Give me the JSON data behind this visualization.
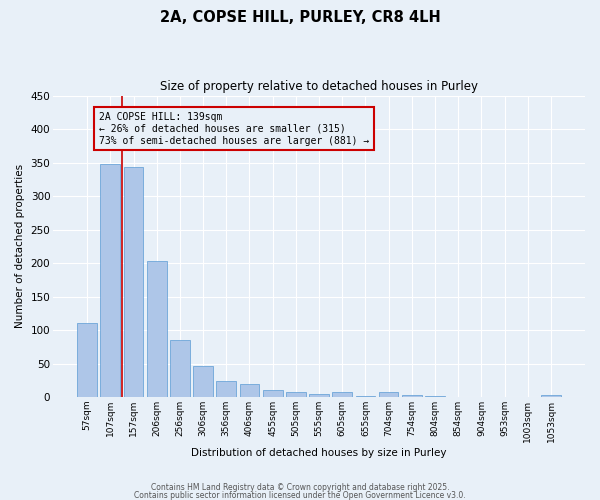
{
  "title_line1": "2A, COPSE HILL, PURLEY, CR8 4LH",
  "title_line2": "Size of property relative to detached houses in Purley",
  "categories": [
    "57sqm",
    "107sqm",
    "157sqm",
    "206sqm",
    "256sqm",
    "306sqm",
    "356sqm",
    "406sqm",
    "455sqm",
    "505sqm",
    "555sqm",
    "605sqm",
    "655sqm",
    "704sqm",
    "754sqm",
    "804sqm",
    "854sqm",
    "904sqm",
    "953sqm",
    "1003sqm",
    "1053sqm"
  ],
  "values": [
    110,
    348,
    343,
    203,
    85,
    46,
    24,
    20,
    10,
    7,
    5,
    8,
    2,
    7,
    3,
    1,
    0,
    0,
    0,
    0,
    3
  ],
  "bar_color": "#aec6e8",
  "bar_edgecolor": "#5b9bd5",
  "ylabel": "Number of detached properties",
  "xlabel": "Distribution of detached houses by size in Purley",
  "ylim": [
    0,
    450
  ],
  "yticks": [
    0,
    50,
    100,
    150,
    200,
    250,
    300,
    350,
    400,
    450
  ],
  "bg_color": "#e8f0f8",
  "grid_color": "#ffffff",
  "annotation_text_line1": "2A COPSE HILL: 139sqm",
  "annotation_text_line2": "← 26% of detached houses are smaller (315)",
  "annotation_text_line3": "73% of semi-detached houses are larger (881) →",
  "annotation_box_color": "#cc0000",
  "vline_color": "#cc0000",
  "vline_x": 1.5,
  "footer_line1": "Contains HM Land Registry data © Crown copyright and database right 2025.",
  "footer_line2": "Contains public sector information licensed under the Open Government Licence v3.0."
}
